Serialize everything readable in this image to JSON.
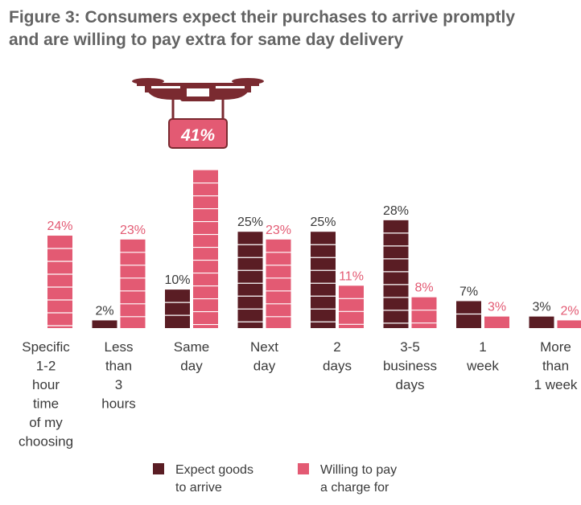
{
  "colors": {
    "expect": "#5a1d24",
    "willing": "#e35a73",
    "axis_text": "#3a3a3a"
  },
  "chart_data": {
    "type": "bar",
    "title_line1": "Figure 3: Consumers expect their purchases to arrive promptly",
    "title_line2": "and are willing to pay extra for same day delivery",
    "categories": [
      [
        "Specific",
        "1-2",
        "hour",
        "time",
        "of my",
        "choosing"
      ],
      [
        "Less",
        "than",
        "3",
        "hours"
      ],
      [
        "Same",
        "day"
      ],
      [
        "Next",
        "day"
      ],
      [
        "2",
        "days"
      ],
      [
        "3-5",
        "business",
        "days"
      ],
      [
        "1",
        "week"
      ],
      [
        "More",
        "than",
        "1 week"
      ]
    ],
    "series": [
      {
        "name": "Expect goods to arrive",
        "values": [
          null,
          2,
          10,
          25,
          25,
          28,
          7,
          3
        ],
        "labels": [
          "",
          "2%",
          "10%",
          "25%",
          "25%",
          "28%",
          "7%",
          "3%"
        ]
      },
      {
        "name": "Willing to pay a charge for",
        "values": [
          24,
          23,
          41,
          23,
          11,
          8,
          3,
          2
        ],
        "labels": [
          "24%",
          "23%",
          "41%",
          "23%",
          "11%",
          "8%",
          "3%",
          "2%"
        ]
      }
    ],
    "ylim": [
      0,
      43
    ],
    "highlight": {
      "category_index": 2,
      "label": "41%",
      "icon": "drone-icon"
    }
  },
  "legend": {
    "expect_line1": "Expect goods",
    "expect_line2": "to arrive",
    "willing_line1": "Willing to pay",
    "willing_line2": "a charge for"
  }
}
